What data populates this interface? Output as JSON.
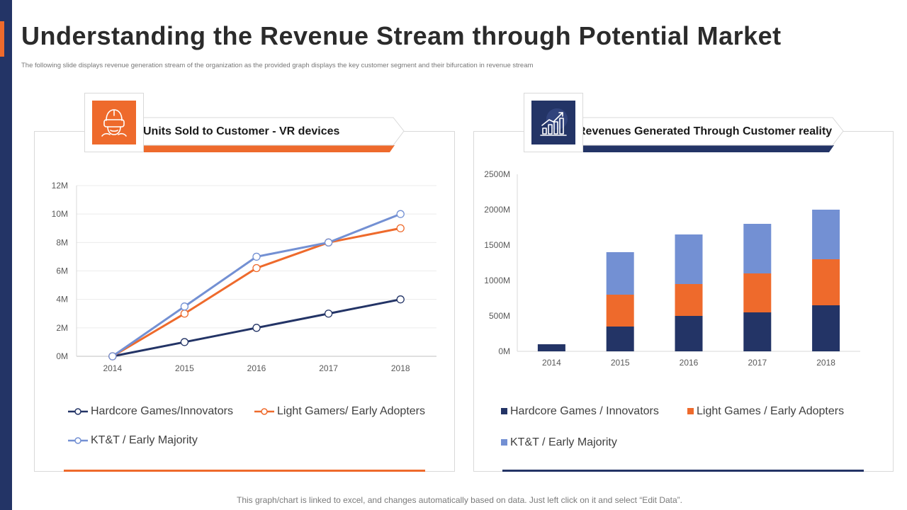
{
  "title": "Understanding the Revenue Stream through Potential Market",
  "subtitle": "The following slide displays revenue generation stream of the organization as the provided  graph displays the key customer segment and their bifurcation in revenue stream",
  "footer": "This graph/chart is linked to excel, and changes automatically based on data. Just left click on it and select “Edit Data”.",
  "colors": {
    "navy": "#233466",
    "orange": "#ee6a2c",
    "light_blue": "#7390d3"
  },
  "left_panel": {
    "heading": "Units Sold to Customer  - VR devices",
    "icon": "vr-headset-icon"
  },
  "right_panel": {
    "heading": "Revenues Generated Through Customer reality",
    "icon": "growth-chart-icon"
  },
  "chart_data": [
    {
      "type": "line",
      "title": "Units Sold to Customer  - VR devices",
      "categories": [
        "2014",
        "2015",
        "2016",
        "2017",
        "2018"
      ],
      "y_ticks": [
        "0M",
        "2M",
        "4M",
        "6M",
        "8M",
        "10M",
        "12M"
      ],
      "ylim": [
        0,
        12
      ],
      "y_unit": "M",
      "grid": true,
      "series": [
        {
          "name": "Hardcore Games/Innovators",
          "color": "#233466",
          "values": [
            0,
            1,
            2,
            3,
            4
          ]
        },
        {
          "name": "Light Gamers/ Early Adopters",
          "color": "#ee6a2c",
          "values": [
            0,
            3,
            6.2,
            8,
            9
          ]
        },
        {
          "name": "KT&T / Early Majority",
          "color": "#7390d3",
          "values": [
            0,
            3.5,
            7,
            8,
            10
          ]
        }
      ],
      "legend_position": "bottom"
    },
    {
      "type": "bar",
      "stacked": true,
      "title": "Revenues Generated Through Customer reality",
      "categories": [
        "2014",
        "2015",
        "2016",
        "2017",
        "2018"
      ],
      "y_ticks": [
        "0M",
        "500M",
        "1000M",
        "1500M",
        "2000M",
        "2500M"
      ],
      "ylim": [
        0,
        2500
      ],
      "y_unit": "M",
      "grid": false,
      "series": [
        {
          "name": "Hardcore Games / Innovators",
          "color": "#233466",
          "values": [
            100,
            350,
            500,
            550,
            650
          ]
        },
        {
          "name": "Light Games / Early Adopters",
          "color": "#ee6a2c",
          "values": [
            0,
            450,
            450,
            550,
            650
          ]
        },
        {
          "name": "KT&T / Early Majority",
          "color": "#7390d3",
          "values": [
            0,
            600,
            700,
            700,
            700
          ]
        }
      ],
      "legend_position": "bottom"
    }
  ]
}
